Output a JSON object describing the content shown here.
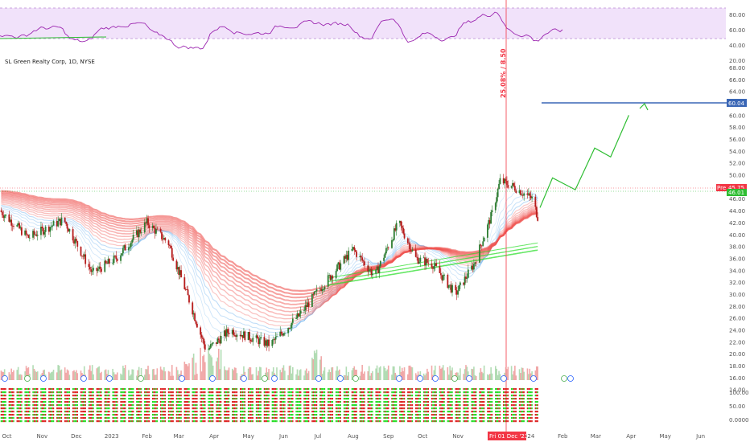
{
  "chart_data": {
    "type": "candlestick",
    "title": "SL Green Realty Corp, 1D, NYSE",
    "price_axis": {
      "ylim": [
        12,
        68
      ],
      "ticks": [
        "68.00",
        "66.00",
        "64.00",
        "62.00",
        "60.00",
        "58.00",
        "56.00",
        "54.00",
        "52.00",
        "50.00",
        "48.00",
        "46.00",
        "44.00",
        "42.00",
        "40.00",
        "38.00",
        "36.00",
        "34.00",
        "32.00",
        "30.00",
        "28.00",
        "26.00",
        "24.00",
        "22.00",
        "20.00",
        "18.00",
        "16.00",
        "14.00"
      ]
    },
    "x_axis": {
      "labels": [
        "Oct",
        "Nov",
        "Dec",
        "2023",
        "Feb",
        "Mar",
        "Apr",
        "May",
        "Jun",
        "Jul",
        "Aug",
        "Sep",
        "Oct",
        "Nov",
        "Fri 01 Dec '23",
        "2024",
        "Feb",
        "Mar",
        "Apr",
        "May",
        "Jun"
      ]
    },
    "rsi": {
      "ticks": [
        "80.00",
        "60.00",
        "40.00",
        "20.00"
      ],
      "band": [
        30,
        70
      ]
    },
    "lower_panel": {
      "ticks": [
        "100.00",
        "50.00",
        "0.0000"
      ]
    },
    "annotations": {
      "vertical_line_label": "25.08% / 8.50",
      "target_price": "60.04",
      "pre_label": "Pre",
      "pre_price": "45.75",
      "last_price": "46.01",
      "date_tag": "Fri 01 Dec '23"
    },
    "projection": [
      {
        "x": "2024-01-12",
        "y": 44.5
      },
      {
        "x": "2024-01-23",
        "y": 49.5
      },
      {
        "x": "2024-02-12",
        "y": 47.5
      },
      {
        "x": "2024-02-29",
        "y": 54.5
      },
      {
        "x": "2024-03-14",
        "y": 53.0
      },
      {
        "x": "2024-03-30",
        "y": 60.0
      }
    ],
    "price_key_points": [
      {
        "x": "2022-09-25",
        "y": 44.0
      },
      {
        "x": "2022-10-20",
        "y": 39.5
      },
      {
        "x": "2022-11-20",
        "y": 42.5
      },
      {
        "x": "2022-12-15",
        "y": 33.5
      },
      {
        "x": "2023-01-05",
        "y": 36.0
      },
      {
        "x": "2023-02-01",
        "y": 42.0
      },
      {
        "x": "2023-02-20",
        "y": 38.5
      },
      {
        "x": "2023-03-10",
        "y": 29.0
      },
      {
        "x": "2023-03-25",
        "y": 20.5
      },
      {
        "x": "2023-04-15",
        "y": 24.0
      },
      {
        "x": "2023-05-20",
        "y": 21.5
      },
      {
        "x": "2023-06-15",
        "y": 26.5
      },
      {
        "x": "2023-07-01",
        "y": 30.5
      },
      {
        "x": "2023-08-01",
        "y": 37.5
      },
      {
        "x": "2023-08-20",
        "y": 33.0
      },
      {
        "x": "2023-09-10",
        "y": 42.0
      },
      {
        "x": "2023-09-25",
        "y": 36.0
      },
      {
        "x": "2023-10-10",
        "y": 35.0
      },
      {
        "x": "2023-10-30",
        "y": 30.0
      },
      {
        "x": "2023-11-15",
        "y": 35.0
      },
      {
        "x": "2023-12-01",
        "y": 43.5
      },
      {
        "x": "2023-12-08",
        "y": 49.0
      },
      {
        "x": "2023-12-20",
        "y": 48.0
      },
      {
        "x": "2024-01-05",
        "y": 46.0
      },
      {
        "x": "2024-01-10",
        "y": 43.0
      }
    ],
    "colors": {
      "up": "#26a69a",
      "down": "#ef5350",
      "rsi_line": "#9c27b0",
      "rsi_band": "#f1e2fa",
      "target_line": "#3a66b5",
      "projection": "#2ebd32",
      "vline": "#f23645",
      "ribbon_fast": "#1e88e5",
      "ribbon_slow": "#ef5350",
      "lower_green": "#22dd22",
      "lower_red": "#dd2222"
    },
    "grid": false
  }
}
